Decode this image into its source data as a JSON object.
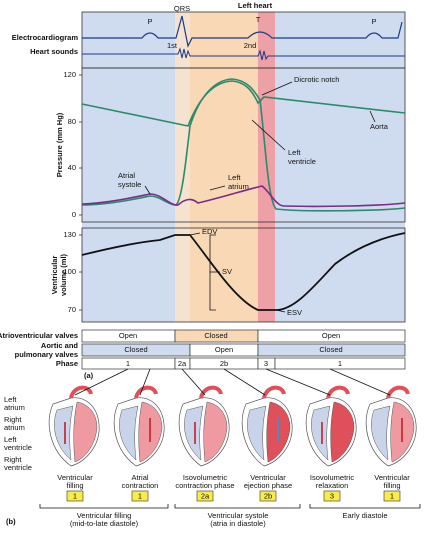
{
  "header": {
    "title": "Left heart"
  },
  "ecg": {
    "label": "Electrocardiogram",
    "waves": [
      "P",
      "QRS",
      "T",
      "P"
    ]
  },
  "heart_sounds": {
    "label": "Heart sounds",
    "sounds": [
      "1st",
      "2nd"
    ]
  },
  "pressure": {
    "axis_label": "Pressure (mm Hg)",
    "ticks": [
      "120",
      "80",
      "40",
      "0"
    ],
    "annotations": {
      "dicrotic_notch": "Dicrotic notch",
      "aorta": "Aorta",
      "left_ventricle": [
        "Left",
        "ventricle"
      ],
      "atrial_systole": [
        "Atrial",
        "systole"
      ],
      "left_atrium": [
        "Left",
        "atrium"
      ]
    }
  },
  "volume": {
    "axis_label": [
      "Ventricular",
      "volume (ml)"
    ],
    "ticks": [
      "130",
      "100",
      "70"
    ],
    "annotations": {
      "edv": "EDV",
      "sv": "SV",
      "esv": "ESV"
    }
  },
  "valves": {
    "av": {
      "label": "Atrioventricular valves",
      "cells": [
        "Open",
        "Closed",
        "Open"
      ]
    },
    "semilunar": {
      "label": [
        "Aortic and",
        "pulmonary valves"
      ],
      "cells": [
        "Closed",
        "Open",
        "Closed"
      ]
    },
    "phase": {
      "label": "Phase",
      "cells": [
        "1",
        "2a",
        "2b",
        "3",
        "1"
      ]
    }
  },
  "panel_a": "(a)",
  "structures": [
    [
      "Left",
      "atrium"
    ],
    [
      "Right",
      "atrium"
    ],
    [
      "Left",
      "ventricle"
    ],
    [
      "Right",
      "ventricle"
    ]
  ],
  "stages": [
    {
      "lines": [
        "Ventricular",
        "filling"
      ],
      "phase": "1"
    },
    {
      "lines": [
        "Atrial",
        "contraction"
      ],
      "phase": "1"
    },
    {
      "lines": [
        "Isovolumetric",
        "contraction phase"
      ],
      "phase": "2a"
    },
    {
      "lines": [
        "Ventricular",
        "ejection phase"
      ],
      "phase": "2b"
    },
    {
      "lines": [
        "Isovolumetric",
        "relaxation"
      ],
      "phase": "3"
    },
    {
      "lines": [
        "Ventricular",
        "filling"
      ],
      "phase": "1"
    }
  ],
  "groups": [
    [
      "Ventricular filling",
      "(mid-to-late diastole)"
    ],
    [
      "Ventricular systole",
      "(atria in diastole)"
    ],
    [
      "Early diastole"
    ]
  ],
  "panel_b": "(b)"
}
